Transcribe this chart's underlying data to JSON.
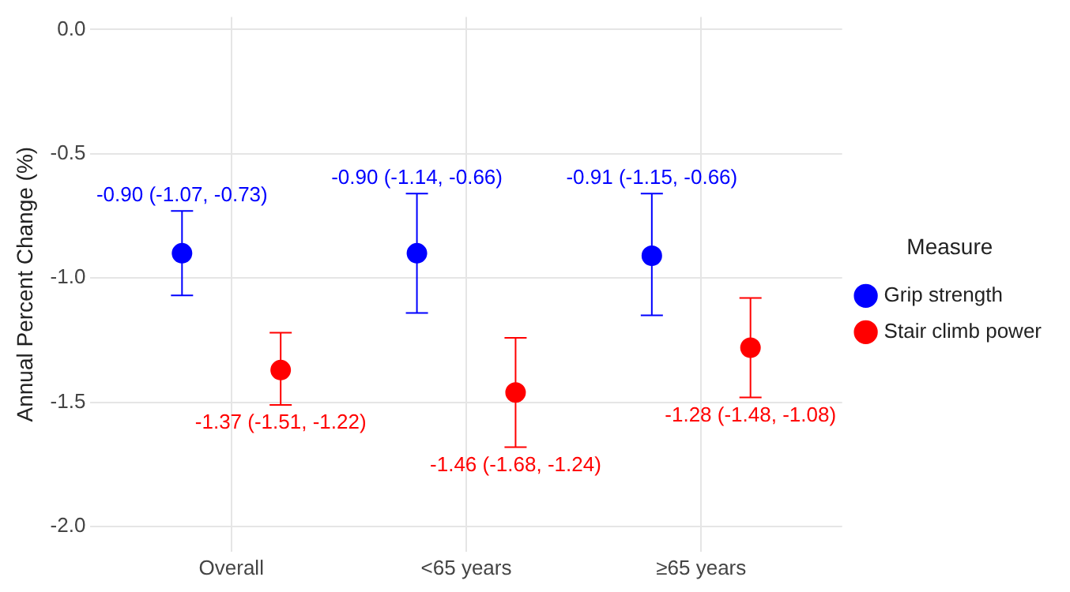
{
  "chart_data": {
    "type": "scatter",
    "ylabel": "Annual Percent Change (%)",
    "legend_title": "Measure",
    "legend": "right",
    "grid": true,
    "marker": "circle",
    "categories": [
      "Overall",
      "<65 years",
      "≥65 years"
    ],
    "ylim": [
      -2.1,
      0.05
    ],
    "yticks": [
      {
        "value": -2,
        "label": "-2.0"
      },
      {
        "value": -1.5,
        "label": "-1.5"
      },
      {
        "value": -1,
        "label": "-1.0"
      },
      {
        "value": -0.5,
        "label": "-0.5"
      },
      {
        "value": 0,
        "label": "0.0"
      }
    ],
    "series": [
      {
        "name": "Grip strength",
        "color": "#0000ff",
        "values": [
          -0.9,
          -0.9,
          -0.91
        ],
        "errors": [
          [
            -1.07,
            -0.73
          ],
          [
            -1.14,
            -0.66
          ],
          [
            -1.15,
            -0.66
          ]
        ],
        "value_labels": [
          "-0.90 (-1.07, -0.73)",
          "-0.90 (-1.14, -0.66)",
          "-0.91 (-1.15, -0.66)"
        ]
      },
      {
        "name": "Stair climb power",
        "color": "#ff0000",
        "values": [
          -1.37,
          -1.46,
          -1.28
        ],
        "errors": [
          [
            -1.51,
            -1.22
          ],
          [
            -1.68,
            -1.24
          ],
          [
            -1.48,
            -1.08
          ]
        ],
        "value_labels": [
          "-1.37 (-1.51, -1.22)",
          "-1.46 (-1.68, -1.24)",
          "-1.28 (-1.48, -1.08)"
        ]
      }
    ]
  }
}
